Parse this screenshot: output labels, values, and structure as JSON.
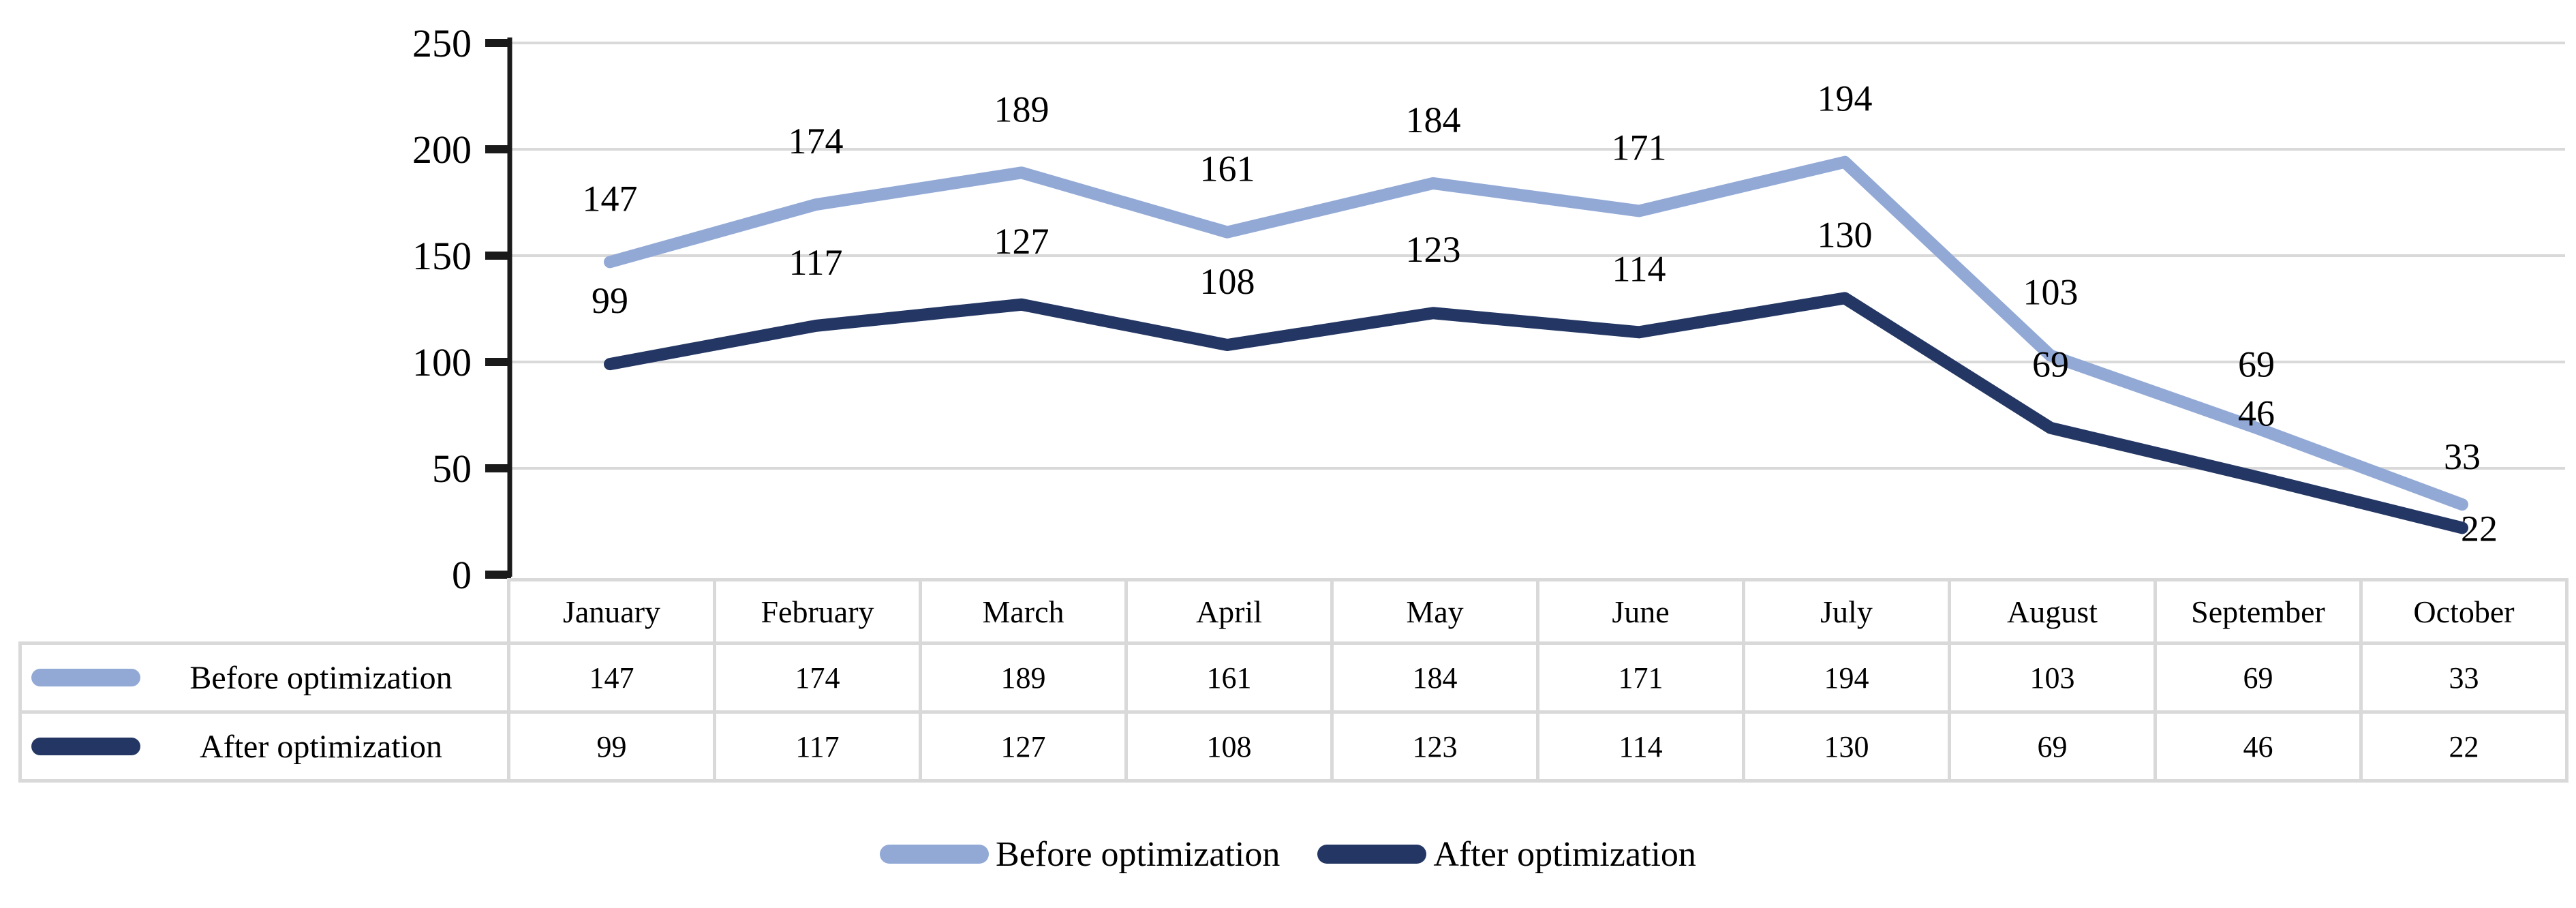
{
  "chart_data": {
    "type": "line",
    "title": "",
    "xlabel": "",
    "ylabel": "",
    "categories": [
      "January",
      "February",
      "March",
      "April",
      "May",
      "June",
      "July",
      "August",
      "September",
      "October"
    ],
    "series": [
      {
        "name": "Before optimization",
        "color": "#92A9D6",
        "values": [
          147,
          174,
          189,
          161,
          184,
          171,
          194,
          103,
          69,
          33
        ]
      },
      {
        "name": "After optimization",
        "color": "#243764",
        "values": [
          99,
          117,
          127,
          108,
          123,
          114,
          130,
          69,
          46,
          22
        ]
      }
    ],
    "ylim": [
      0,
      250
    ],
    "yticks": [
      0,
      50,
      100,
      150,
      200,
      250
    ],
    "grid": true,
    "data_labels": true,
    "legend_position": "bottom",
    "colors": {
      "gridline": "#D9D9D9",
      "axis": "#1A1A1A",
      "table_border": "#D9D9D9",
      "label_text": "#000000"
    }
  },
  "legend": {
    "items": [
      {
        "label": "Before optimization"
      },
      {
        "label": "After optimization"
      }
    ]
  }
}
